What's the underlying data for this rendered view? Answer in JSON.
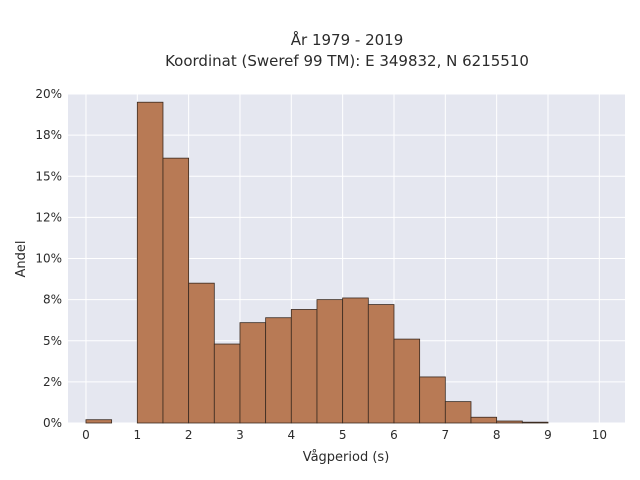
{
  "chart_data": {
    "type": "bar",
    "title_line1": "År 1979 - 2019",
    "title_line2": "Koordinat (Sweref 99 TM): E 349832, N 6215510",
    "xlabel": "Vågperiod (s)",
    "ylabel": "Andel",
    "bin_width": 0.5,
    "bin_starts": [
      0,
      0.5,
      1,
      1.5,
      2,
      2.5,
      3,
      3.5,
      4,
      4.5,
      5,
      5.5,
      6,
      6.5,
      7,
      7.5,
      8,
      8.5,
      9,
      9.5
    ],
    "values": [
      0.2,
      0.0,
      19.5,
      16.1,
      8.5,
      4.8,
      6.1,
      6.4,
      6.9,
      7.5,
      7.6,
      7.2,
      5.1,
      2.8,
      1.3,
      0.35,
      0.12,
      0.05,
      0.0,
      0.0
    ],
    "xlim": [
      -0.35,
      10.5
    ],
    "ylim": [
      0,
      20
    ],
    "x_ticks": [
      0,
      1,
      2,
      3,
      4,
      5,
      6,
      7,
      8,
      9,
      10
    ],
    "x_tick_labels": [
      "0",
      "1",
      "2",
      "3",
      "4",
      "5",
      "6",
      "7",
      "8",
      "9",
      "10"
    ],
    "y_ticks": [
      0,
      2.5,
      5,
      7.5,
      10,
      12.5,
      15,
      17.5,
      20
    ],
    "y_tick_labels": [
      "0%",
      "2%",
      "5%",
      "8%",
      "10%",
      "12%",
      "15%",
      "18%",
      "20%"
    ],
    "grid": true,
    "bar_color": "#b87a55",
    "bar_edge_color": "#3a2a20",
    "plot_background": "#e5e7f0",
    "grid_color": "#ffffff"
  }
}
